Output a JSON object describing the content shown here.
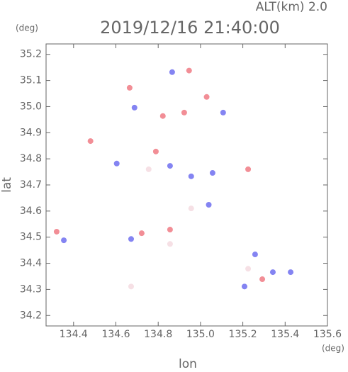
{
  "chart_data": {
    "type": "scatter",
    "title": "2019/12/16 21:40:00",
    "annotation": "ALT(km) 2.0",
    "x_label": "lon",
    "y_label": "lat",
    "x_unit": "(deg)",
    "y_unit": "(deg)",
    "xlim": [
      134.27,
      135.6
    ],
    "ylim": [
      34.16,
      35.24
    ],
    "xticks": [
      134.4,
      134.6,
      134.8,
      {
        "value": 135,
        "label": "135.0"
      },
      135.2,
      135.4,
      135.6
    ],
    "yticks": [
      34.2,
      34.3,
      34.4,
      34.5,
      34.6,
      34.7,
      34.8,
      34.9,
      {
        "value": 35,
        "label": "35.0"
      },
      35.1,
      35.2
    ],
    "x": [
      134.866,
      134.946,
      134.665,
      135.029,
      134.688,
      134.923,
      135.107,
      134.822,
      134.48,
      134.789,
      134.856,
      134.755,
      134.604,
      135.057,
      135.225,
      134.956,
      135.039,
      134.956,
      134.32,
      134.354,
      134.722,
      134.856,
      134.672,
      134.856,
      134.672,
      135.225,
      135.292,
      135.342,
      135.208,
      135.426,
      135.258
    ],
    "values": [
      35.132,
      35.138,
      35.072,
      35.037,
      34.996,
      34.977,
      34.977,
      34.964,
      34.868,
      34.828,
      34.773,
      34.76,
      34.782,
      34.746,
      34.76,
      34.733,
      34.624,
      34.61,
      34.521,
      34.488,
      34.515,
      34.474,
      34.493,
      34.529,
      34.311,
      34.379,
      34.339,
      34.366,
      34.311,
      34.366,
      34.434
    ],
    "colors": [
      "#6f6ff0",
      "#f07a84",
      "#f07a84",
      "#f07a84",
      "#6f6ff0",
      "#f07a84",
      "#6f6ff0",
      "#f07a84",
      "#f07a84",
      "#f07a84",
      "#6f6ff0",
      "#f5dbe0",
      "#6f6ff0",
      "#6f6ff0",
      "#f07a84",
      "#6f6ff0",
      "#6f6ff0",
      "#f5dbe0",
      "#f07a84",
      "#6f6ff0",
      "#f07a84",
      "#f5dbe0",
      "#6f6ff0",
      "#f07a84",
      "#f5dbe0",
      "#f5dbe0",
      "#f07a84",
      "#6f6ff0",
      "#6f6ff0",
      "#6f6ff0",
      "#6f6ff0"
    ]
  }
}
